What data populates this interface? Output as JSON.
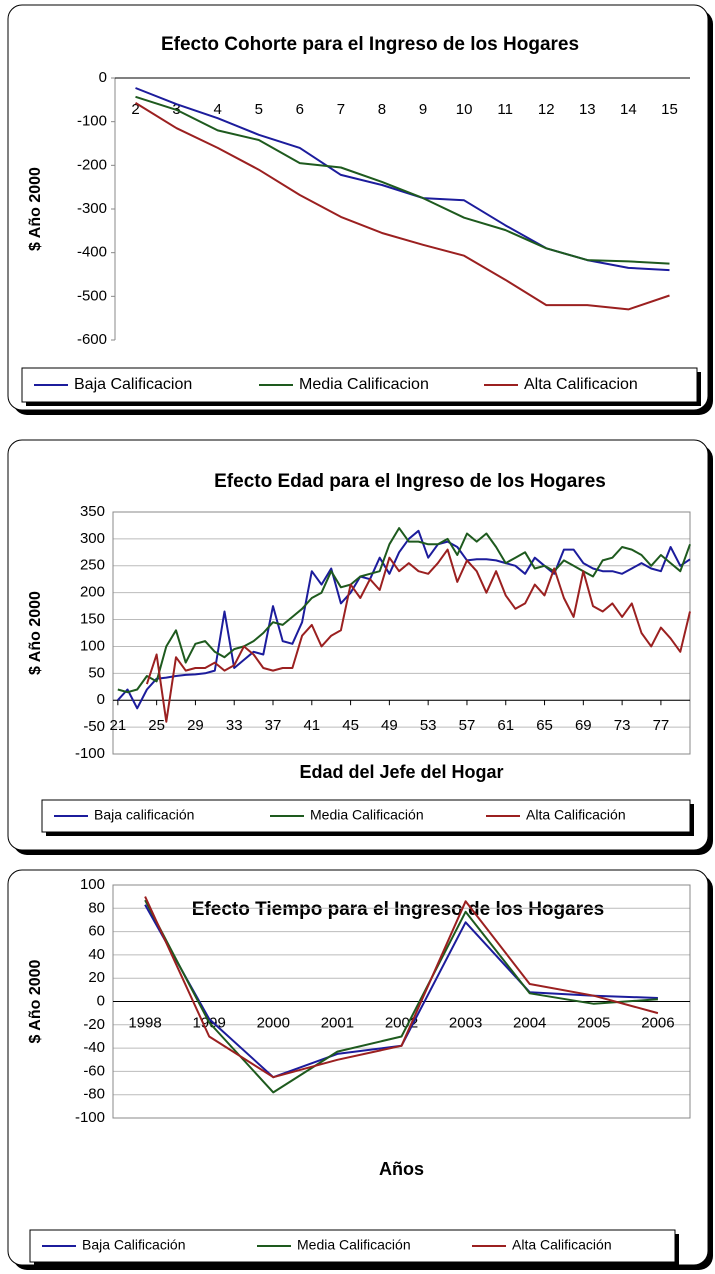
{
  "chart_data": [
    {
      "type": "line",
      "title": "Efecto Cohorte para el Ingreso de los Hogares",
      "y_label": "$ Año 2000",
      "categories": [
        "2",
        "3",
        "4",
        "5",
        "6",
        "7",
        "8",
        "9",
        "10",
        "11",
        "12",
        "13",
        "14",
        "15"
      ],
      "ylim": [
        -600,
        0
      ],
      "yticks": [
        -600,
        -500,
        -400,
        -300,
        -200,
        -100,
        0
      ],
      "grid": false,
      "series": [
        {
          "name": "Baja Calificacion",
          "color": "#1c1c9c",
          "values": [
            -23,
            -60,
            -92,
            -130,
            -160,
            -222,
            -245,
            -275,
            -280,
            -337,
            -390,
            -417,
            -435,
            -440
          ]
        },
        {
          "name": "Media Calificacion",
          "color": "#1e5a1e",
          "values": [
            -43,
            -73,
            -120,
            -142,
            -195,
            -205,
            -238,
            -275,
            -320,
            -348,
            -390,
            -417,
            -420,
            -425
          ]
        },
        {
          "name": "Alta Calificacion",
          "color": "#9b2020",
          "values": [
            -57,
            -115,
            -160,
            -210,
            -268,
            -318,
            -355,
            -382,
            -407,
            -462,
            -520,
            -520,
            -530,
            -498
          ]
        }
      ]
    },
    {
      "type": "line",
      "title": "Efecto Edad para el Ingreso de los Hogares",
      "y_label": "$ Año 2000",
      "x_label": "Edad del Jefe del Hogar",
      "x": [
        21,
        22,
        23,
        24,
        25,
        26,
        27,
        28,
        29,
        30,
        31,
        32,
        33,
        34,
        35,
        36,
        37,
        38,
        39,
        40,
        41,
        42,
        43,
        44,
        45,
        46,
        47,
        48,
        49,
        50,
        51,
        52,
        53,
        54,
        55,
        56,
        57,
        58,
        59,
        60,
        61,
        62,
        63,
        64,
        65,
        66,
        67,
        68,
        69,
        70,
        71,
        72,
        73,
        74,
        75,
        76,
        77,
        78,
        79,
        80
      ],
      "xlim": [
        20.5,
        80
      ],
      "xticks": [
        21,
        25,
        29,
        33,
        37,
        41,
        45,
        49,
        53,
        57,
        61,
        65,
        69,
        73,
        77
      ],
      "ylim": [
        -100,
        350
      ],
      "yticks": [
        -100,
        -50,
        0,
        50,
        100,
        150,
        200,
        250,
        300,
        350
      ],
      "grid": true,
      "series": [
        {
          "name": "Baja calificación",
          "color": "#1c1c9c",
          "values": [
            0,
            20,
            -15,
            20,
            40,
            42,
            45,
            47,
            48,
            50,
            55,
            165,
            60,
            75,
            90,
            85,
            175,
            110,
            105,
            145,
            240,
            215,
            245,
            180,
            200,
            230,
            225,
            265,
            235,
            275,
            300,
            315,
            265,
            290,
            295,
            285,
            260,
            262,
            262,
            260,
            255,
            250,
            235,
            265,
            250,
            235,
            280,
            280,
            255,
            245,
            240,
            240,
            235,
            245,
            255,
            245,
            240,
            285,
            250,
            262
          ]
        },
        {
          "name": "Media Calificación",
          "color": "#1e5a1e",
          "values": [
            20,
            15,
            20,
            45,
            35,
            100,
            130,
            70,
            105,
            110,
            90,
            80,
            95,
            100,
            110,
            125,
            145,
            140,
            155,
            170,
            190,
            200,
            240,
            210,
            215,
            230,
            235,
            240,
            290,
            320,
            295,
            295,
            290,
            290,
            300,
            270,
            310,
            295,
            310,
            285,
            255,
            265,
            275,
            245,
            250,
            240,
            260,
            250,
            240,
            230,
            260,
            265,
            285,
            280,
            270,
            250,
            270,
            255,
            240,
            290
          ]
        },
        {
          "name": "Alta Calificación",
          "color": "#9b2020",
          "values": [
            null,
            null,
            null,
            30,
            85,
            -40,
            80,
            55,
            60,
            60,
            70,
            55,
            65,
            100,
            85,
            60,
            55,
            60,
            60,
            120,
            140,
            100,
            120,
            130,
            215,
            190,
            225,
            205,
            265,
            240,
            255,
            240,
            235,
            255,
            280,
            220,
            260,
            240,
            200,
            240,
            195,
            170,
            180,
            215,
            195,
            245,
            190,
            155,
            240,
            175,
            165,
            180,
            155,
            180,
            125,
            100,
            135,
            115,
            90,
            165
          ]
        }
      ]
    },
    {
      "type": "line",
      "title": "Efecto Tiempo para el Ingreso de los Hogares",
      "y_label": "$ Año 2000",
      "x_label": "Años",
      "categories": [
        "1998",
        "1999",
        "2000",
        "2001",
        "2002",
        "2003",
        "2004",
        "2005",
        "2006"
      ],
      "ylim": [
        -100,
        100
      ],
      "yticks": [
        -100,
        -80,
        -60,
        -40,
        -20,
        0,
        20,
        40,
        60,
        80,
        100
      ],
      "grid": true,
      "series": [
        {
          "name": "Baja Calificación",
          "color": "#1c1c9c",
          "values": [
            83,
            -15,
            -65,
            -45,
            -38,
            68,
            8,
            5,
            3
          ]
        },
        {
          "name": "Media Calificación",
          "color": "#1e5a1e",
          "values": [
            87,
            -18,
            -78,
            -43,
            -30,
            77,
            7,
            -2,
            2
          ]
        },
        {
          "name": "Alta Calificación",
          "color": "#9b2020",
          "values": [
            90,
            -30,
            -65,
            -50,
            -38,
            86,
            15,
            5,
            -10
          ]
        }
      ]
    }
  ]
}
